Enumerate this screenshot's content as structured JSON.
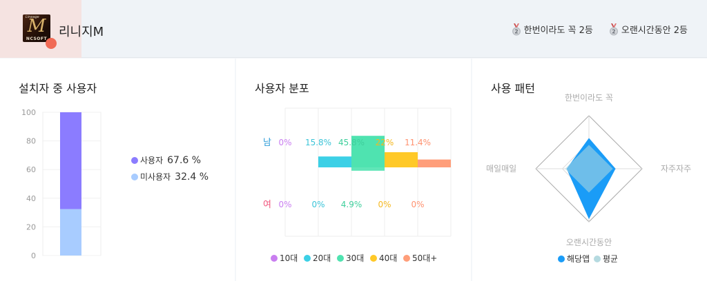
{
  "header": {
    "app_name": "리니지M",
    "icon": {
      "name": "lineage-m-app-icon",
      "text_top": "Lineage",
      "text_main": "M",
      "text_bottom": "NCSOFT"
    },
    "badges": [
      {
        "icon": "silver-medal-2-icon",
        "rank": "2",
        "label": "한번이라도 꼭 2등"
      },
      {
        "icon": "silver-medal-2-icon",
        "rank": "2",
        "label": "오랜시간동안 2등"
      }
    ]
  },
  "installed_users": {
    "title": "설치자 중 사용자",
    "chart_data": {
      "type": "bar",
      "stacked": true,
      "ylim": [
        0,
        100
      ],
      "yticks": [
        0,
        20,
        40,
        60,
        80,
        100
      ],
      "series": [
        {
          "name": "사용자",
          "value": 67.6,
          "color": "#8b7cff"
        },
        {
          "name": "미사용자",
          "value": 32.4,
          "color": "#a8ccff"
        }
      ],
      "legend": [
        {
          "name": "사용자",
          "value_text": "67.6 %",
          "color": "#8b7cff"
        },
        {
          "name": "미사용자",
          "value_text": "32.4 %",
          "color": "#a8ccff"
        }
      ]
    }
  },
  "user_distribution": {
    "title": "사용자 분포",
    "chart_data": {
      "type": "bar",
      "categories": [
        "10대",
        "20대",
        "30대",
        "40대",
        "50대+"
      ],
      "rows": [
        {
          "name": "남",
          "color": "#2a9bd8",
          "values": [
            0,
            15.8,
            45.8,
            22,
            11.4
          ],
          "labels": [
            "0%",
            "15.8%",
            "45.8%",
            "22%",
            "11.4%"
          ]
        },
        {
          "name": "여",
          "color": "#f0527a",
          "values": [
            0,
            0,
            4.9,
            0,
            0
          ],
          "labels": [
            "0%",
            "0%",
            "4.9%",
            "0%",
            "0%"
          ]
        }
      ],
      "colors": [
        "#c97ef0",
        "#3cd0e6",
        "#4fe3b0",
        "#ffc928",
        "#ff9e7a"
      ],
      "label_colors": [
        "#c97ef0",
        "#3cc4d8",
        "#3fcf9c",
        "#f5b820",
        "#ff9270"
      ]
    }
  },
  "usage_pattern": {
    "title": "사용 패턴",
    "chart_data": {
      "type": "radar",
      "axes": [
        "한번이라도 꼭",
        "자주자주",
        "오랜시간동안",
        "매일매일"
      ],
      "range": [
        0,
        1
      ],
      "series": [
        {
          "name": "해당앱",
          "values": [
            0.58,
            0.5,
            0.95,
            0.42
          ],
          "color": "#1a9cf7"
        },
        {
          "name": "평균",
          "values": [
            0.45,
            0.45,
            0.45,
            0.45
          ],
          "color": "#b5dae0"
        }
      ]
    }
  }
}
